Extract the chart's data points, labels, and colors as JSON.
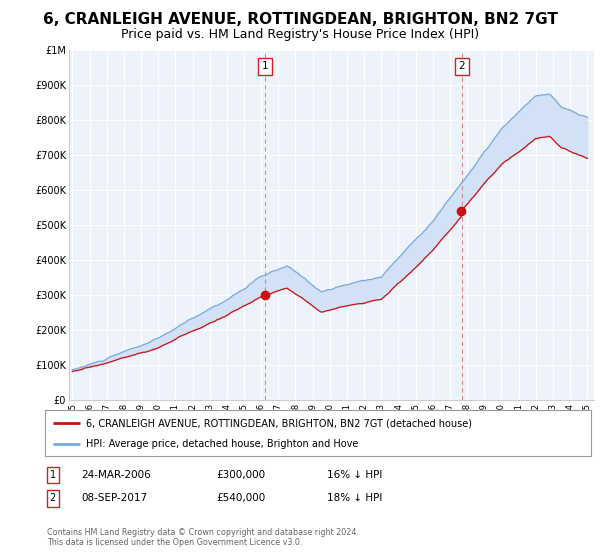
{
  "title": "6, CRANLEIGH AVENUE, ROTTINGDEAN, BRIGHTON, BN2 7GT",
  "subtitle": "Price paid vs. HM Land Registry's House Price Index (HPI)",
  "title_fontsize": 11,
  "subtitle_fontsize": 9,
  "background_color": "#ffffff",
  "plot_bg_color": "#eef3fb",
  "grid_color": "#ffffff",
  "hpi_color": "#7aaadd",
  "property_color": "#cc1111",
  "fill_color": "#ccddf5",
  "fill_alpha": 0.5,
  "dashed_line_color": "#dd4444",
  "sale1_year": 2006.22,
  "sale1_price": 300000,
  "sale2_year": 2017.69,
  "sale2_price": 540000,
  "ylim": [
    0,
    1000000
  ],
  "xlim_start": 1994.8,
  "xlim_end": 2025.4,
  "legend_label_property": "6, CRANLEIGH AVENUE, ROTTINGDEAN, BRIGHTON, BN2 7GT (detached house)",
  "legend_label_hpi": "HPI: Average price, detached house, Brighton and Hove",
  "table_row1": [
    "1",
    "24-MAR-2006",
    "£300,000",
    "16% ↓ HPI"
  ],
  "table_row2": [
    "2",
    "08-SEP-2017",
    "£540,000",
    "18% ↓ HPI"
  ],
  "footnote": "Contains HM Land Registry data © Crown copyright and database right 2024.\nThis data is licensed under the Open Government Licence v3.0.",
  "ytick_labels": [
    "£0",
    "£100K",
    "£200K",
    "£300K",
    "£400K",
    "£500K",
    "£600K",
    "£700K",
    "£800K",
    "£900K",
    "£1M"
  ],
  "ytick_values": [
    0,
    100000,
    200000,
    300000,
    400000,
    500000,
    600000,
    700000,
    800000,
    900000,
    1000000
  ]
}
